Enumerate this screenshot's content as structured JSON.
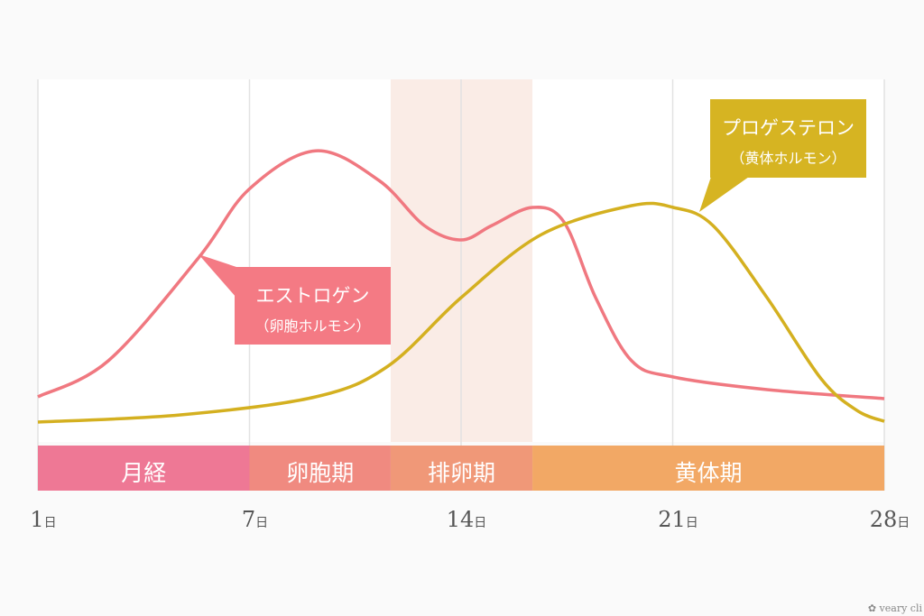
{
  "chart_data": {
    "type": "line",
    "title": "",
    "xlabel": "",
    "ylabel": "",
    "xlim": [
      0,
      28
    ],
    "ylim": [
      0,
      100
    ],
    "x_ticks": [
      {
        "pos": 0,
        "label": "1",
        "unit": "日"
      },
      {
        "pos": 7,
        "label": "7",
        "unit": "日"
      },
      {
        "pos": 14,
        "label": "14",
        "unit": "日"
      },
      {
        "pos": 21,
        "label": "21",
        "unit": "日"
      },
      {
        "pos": 28,
        "label": "28",
        "unit": "日"
      }
    ],
    "grid": true,
    "series": [
      {
        "name": "エストロゲン",
        "subname": "（卵胞ホルモン）",
        "color": "#f07880",
        "box_color": "#f47a84",
        "x": [
          0,
          2.33,
          5.31,
          6.98,
          9.19,
          11.28,
          12.78,
          14,
          15.02,
          16.36,
          17.4,
          18.45,
          19.64,
          21.02,
          24.12,
          28
        ],
        "y": [
          12.5,
          22.5,
          51,
          70,
          80.7,
          72.5,
          60,
          56,
          60,
          65,
          61,
          40,
          22.5,
          18,
          14.5,
          12
        ]
      },
      {
        "name": "プロゲステロン",
        "subname": "（黄体ホルモン）",
        "color": "#d4b020",
        "box_color": "#d6b422",
        "x": [
          0,
          4.72,
          9.19,
          11.58,
          14,
          16.66,
          19.64,
          21.02,
          22.33,
          24.12,
          25.91,
          27.1,
          28
        ],
        "y": [
          5.5,
          7.5,
          12.5,
          21,
          40,
          57.5,
          65.5,
          65,
          60,
          40,
          17.5,
          8.7,
          5.7
        ]
      }
    ],
    "phases": [
      {
        "label": "月経",
        "start": 0,
        "end": 7,
        "color": "#ee7895"
      },
      {
        "label": "卵胞期",
        "start": 7,
        "end": 11.67,
        "color": "#f08a80"
      },
      {
        "label": "排卵期",
        "start": 11.67,
        "end": 16.36,
        "color": "#f09878"
      },
      {
        "label": "黄体期",
        "start": 16.36,
        "end": 28,
        "color": "#f2a865"
      }
    ],
    "highlight_band": {
      "start": 11.67,
      "end": 16.36,
      "color": "#faece6"
    }
  },
  "watermark": "veary cli"
}
